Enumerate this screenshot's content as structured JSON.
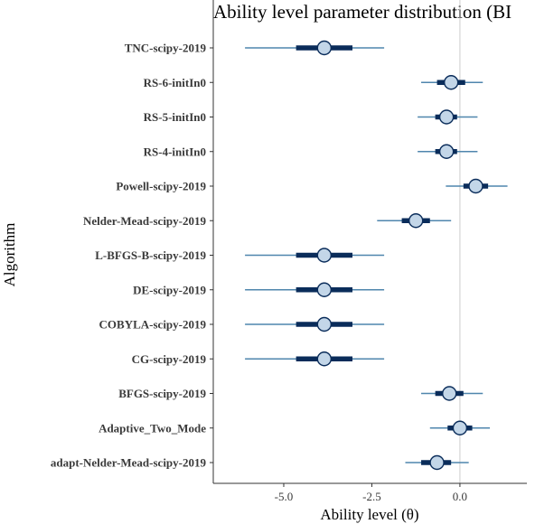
{
  "chart_data": {
    "type": "interval",
    "title": "Ability level parameter distribution (BI",
    "xlabel": "Ability level (θ)",
    "ylabel": "Algorithm",
    "xlim": [
      -7.0,
      1.9
    ],
    "xticks": [
      -5.0,
      -2.5,
      0.0
    ],
    "xtick_labels": [
      "-5.0",
      "-2.5",
      "0.0"
    ],
    "reference_line": 0,
    "grid": false,
    "colors": {
      "outer_interval": "#4f86ad",
      "inner_interval": "#0a2c5a",
      "point_fill": "#c3d6e8",
      "point_stroke": "#0a2c5a",
      "reference_line": "#cccccc"
    },
    "categories": [
      "TNC-scipy-2019",
      "RS-6-initIn0",
      "RS-5-initIn0",
      "RS-4-initIn0",
      "Powell-scipy-2019",
      "Nelder-Mead-scipy-2019",
      "L-BFGS-B-scipy-2019",
      "DE-scipy-2019",
      "COBYLA-scipy-2019",
      "CG-scipy-2019",
      "BFGS-scipy-2019",
      "Adaptive_Two_Mode",
      "adapt-Nelder-Mead-scipy-2019"
    ],
    "series": [
      {
        "median": [
          -3.85,
          -0.25,
          -0.38,
          -0.38,
          0.45,
          -1.25,
          -3.85,
          -3.85,
          -3.85,
          -3.85,
          -0.3,
          0.0,
          -0.65
        ],
        "inner_low": [
          -4.65,
          -0.65,
          -0.7,
          -0.7,
          0.1,
          -1.65,
          -4.65,
          -4.65,
          -4.65,
          -4.65,
          -0.7,
          -0.35,
          -1.1
        ],
        "inner_high": [
          -3.05,
          0.15,
          -0.08,
          -0.08,
          0.8,
          -0.85,
          -3.05,
          -3.05,
          -3.05,
          -3.05,
          0.1,
          0.35,
          -0.25
        ],
        "outer_low": [
          -6.1,
          -1.1,
          -1.2,
          -1.2,
          -0.4,
          -2.35,
          -6.1,
          -6.1,
          -6.1,
          -6.1,
          -1.1,
          -0.85,
          -1.55
        ],
        "outer_high": [
          -2.15,
          0.65,
          0.5,
          0.5,
          1.35,
          -0.25,
          -2.15,
          -2.15,
          -2.15,
          -2.15,
          0.65,
          0.85,
          0.25
        ]
      }
    ]
  }
}
